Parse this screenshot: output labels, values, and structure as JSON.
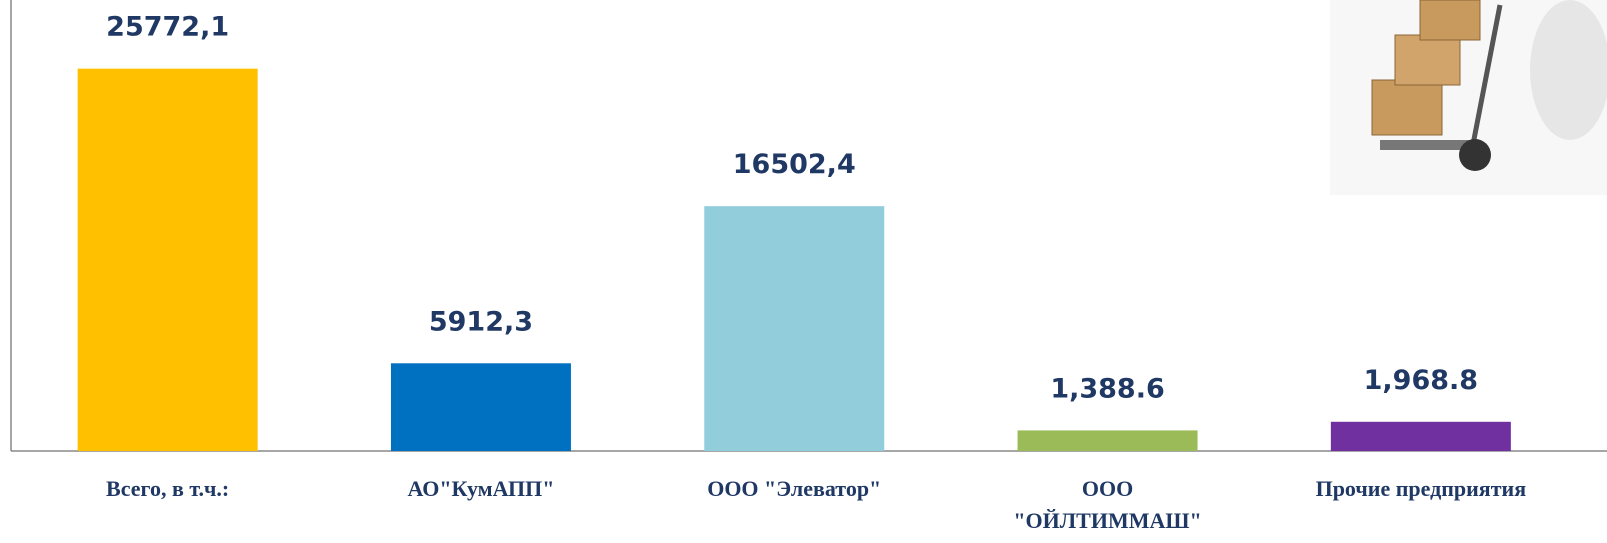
{
  "chart_data": {
    "type": "bar",
    "categories": [
      "Всего, в т.ч.:",
      "АО\"КумАПП\"",
      "ООО \"Элеватор\"",
      "ООО\n\"ОЙЛТИММАШ\"",
      "Прочие предприятия"
    ],
    "values": [
      25772.1,
      5912.3,
      16502.4,
      1388.6,
      1968.8
    ],
    "value_labels": [
      "25772,1",
      "5912,3",
      "16502,4",
      "1,388.6",
      "1,968.8"
    ],
    "colors": [
      "#ffc000",
      "#0070c0",
      "#92cddc",
      "#9bbb59",
      "#7030a0"
    ],
    "ylim": [
      0,
      30400
    ]
  }
}
